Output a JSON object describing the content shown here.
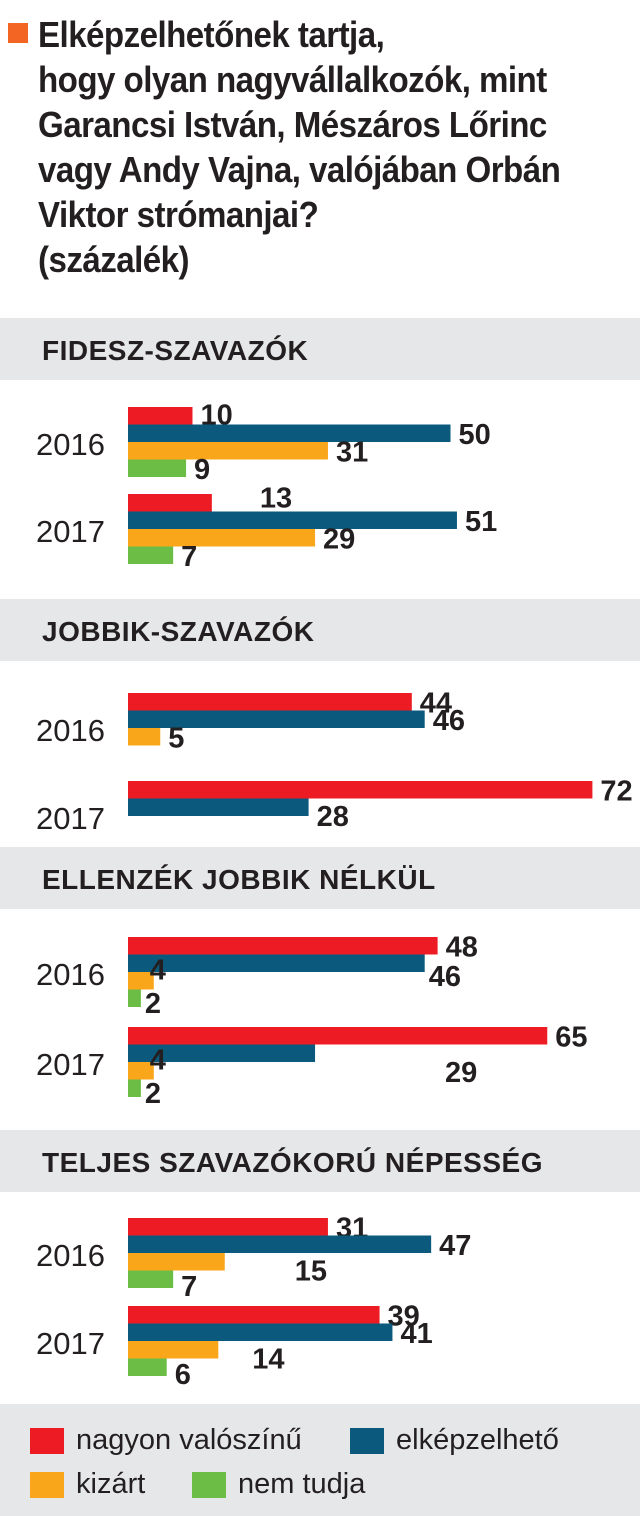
{
  "title": {
    "lines": [
      "Elképzelhetőnek tartja,",
      "hogy olyan nagyvállalkozók, mint",
      "Garancsi István, Mészáros Lőrinc",
      "vagy Andy Vajna, valójában Orbán",
      "Viktor strómanjai?",
      "(százalék)"
    ]
  },
  "colors": {
    "nagyon_valoszinu": "#ed1c24",
    "elkepzelheto": "#0b5a7d",
    "kizart": "#faa61a",
    "nem_tudja": "#6cbd45",
    "accent": "#f26522",
    "section_bg": "#e6e7e8"
  },
  "legend": {
    "items": [
      {
        "label": "nagyon valószínű",
        "color_key": "nagyon_valoszinu"
      },
      {
        "label": "elképzelhető",
        "color_key": "elkepzelheto"
      },
      {
        "label": "kizárt",
        "color_key": "kizart"
      },
      {
        "label": "nem tudja",
        "color_key": "nem_tudja"
      }
    ]
  },
  "chart_data": {
    "type": "bar",
    "orientation": "horizontal",
    "unit": "százalék",
    "series_names": [
      "nagyon valószínű",
      "elképzelhető",
      "kizárt",
      "nem tudja"
    ],
    "xlim": [
      0,
      72
    ],
    "grid": false,
    "legend_position": "bottom",
    "sections": [
      {
        "title": "FIDESZ-SZAVAZÓK",
        "groups": [
          {
            "year": "2016",
            "values": [
              10,
              50,
              31,
              9
            ]
          },
          {
            "year": "2017",
            "values": [
              13,
              51,
              29,
              7
            ]
          }
        ]
      },
      {
        "title": "JOBBIK-SZAVAZÓK",
        "groups": [
          {
            "year": "2016",
            "values": [
              44,
              46,
              5,
              null
            ]
          },
          {
            "year": "2017",
            "values": [
              72,
              28,
              null,
              null
            ]
          }
        ]
      },
      {
        "title": "ELLENZÉK JOBBIK NÉLKÜL",
        "groups": [
          {
            "year": "2016",
            "values": [
              48,
              46,
              4,
              2
            ]
          },
          {
            "year": "2017",
            "values": [
              65,
              29,
              4,
              2
            ]
          }
        ]
      },
      {
        "title": "TELJES SZAVAZÓKORÚ NÉPESSÉG",
        "groups": [
          {
            "year": "2016",
            "values": [
              31,
              47,
              15,
              7
            ]
          },
          {
            "year": "2017",
            "values": [
              39,
              41,
              14,
              6
            ]
          }
        ]
      }
    ]
  }
}
